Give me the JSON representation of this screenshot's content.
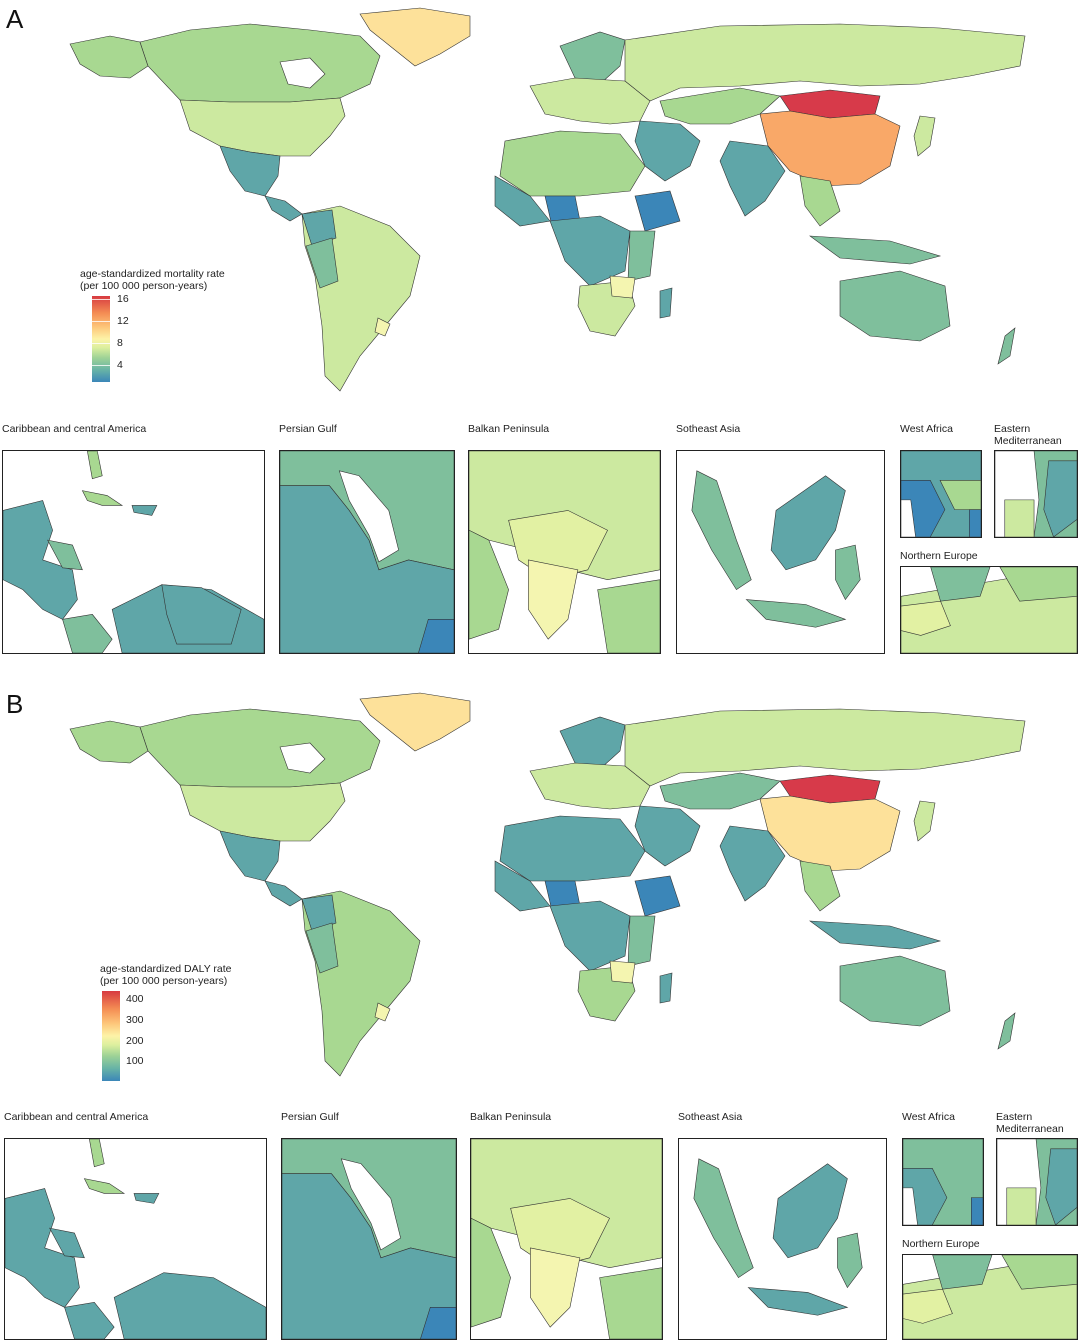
{
  "panels": [
    {
      "id": "A",
      "letter": "A",
      "legend": {
        "title_line1": "age-standardized mortality rate",
        "title_line2": "(per 100 000 person-years)",
        "ticks": [
          "16",
          "12",
          "8",
          "4"
        ],
        "tick_values": [
          16,
          12,
          8,
          4
        ],
        "range": [
          2,
          16.5
        ]
      },
      "insets": [
        {
          "title": "Caribbean and central America"
        },
        {
          "title": "Persian Gulf"
        },
        {
          "title": "Balkan Peninsula"
        },
        {
          "title": "Sotheast Asia"
        },
        {
          "title": "West Africa"
        },
        {
          "title": "Eastern Mediterranean"
        },
        {
          "title": "Northern Europe"
        }
      ]
    },
    {
      "id": "B",
      "letter": "B",
      "legend": {
        "title_line1": "age-standardized DALY rate",
        "title_line2": "(per 100 000 person-years)",
        "ticks": [
          "400",
          "300",
          "200",
          "100"
        ],
        "tick_values": [
          400,
          300,
          200,
          100
        ],
        "range": [
          50,
          430
        ]
      },
      "insets": [
        {
          "title": "Caribbean and central America"
        },
        {
          "title": "Persian Gulf"
        },
        {
          "title": "Balkan Peninsula"
        },
        {
          "title": "Sotheast Asia"
        },
        {
          "title": "West Africa"
        },
        {
          "title": "Eastern Mediterranean"
        },
        {
          "title": "Northern Europe"
        }
      ]
    }
  ],
  "colors": {
    "blue": "#3b86b8",
    "teal": "#5fa6a8",
    "green_teal": "#7fbf9c",
    "green": "#a8d891",
    "light_green": "#cce9a0",
    "yellow_green": "#e2f1a3",
    "light_yellow": "#f4f5b0",
    "yellow": "#fde19a",
    "orange": "#f9a868",
    "red": "#d73a4a",
    "border": "#333333"
  }
}
